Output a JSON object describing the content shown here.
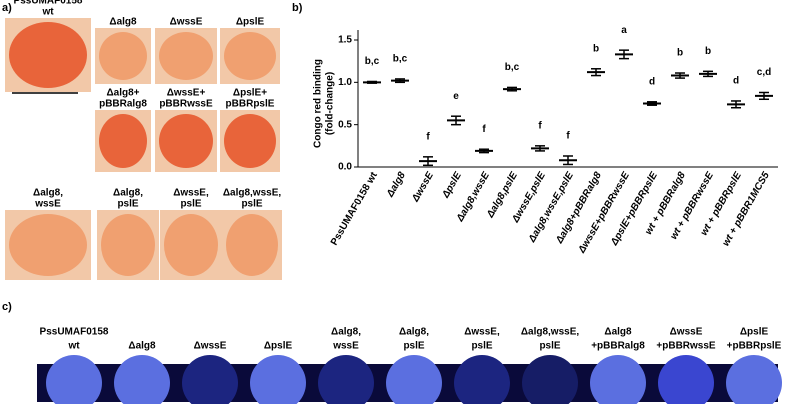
{
  "panel_a": {
    "label": "a)",
    "plates": [
      [
        "PssUMAF0158",
        "wt"
      ],
      [
        "Δalg8"
      ],
      [
        "ΔwssE"
      ],
      [
        "ΔpslE"
      ],
      [
        "Δalg8+",
        "pBBRalg8"
      ],
      [
        "ΔwssE+",
        "pBBRwssE"
      ],
      [
        "ΔpslE+",
        "pBBRpslE"
      ],
      [
        "Δalg8,",
        "wssE"
      ],
      [
        "Δalg8,",
        "pslE"
      ],
      [
        "ΔwssE,",
        "pslE"
      ],
      [
        "Δalg8,wssE,",
        "pslE"
      ]
    ]
  },
  "chart_data": {
    "type": "dot",
    "label": "b)",
    "ylabel": [
      "Congo red binding",
      "(fold-change)"
    ],
    "categories": [
      "PssUMAF0158 wt",
      "Δalg8",
      "ΔwssE",
      "ΔpslE",
      "Δalg8,wssE",
      "Δalg8,pslE",
      "ΔwssE,pslE",
      "Δalg8,wssE,pslE",
      "Δalg8+pBBRalg8",
      "ΔwssE+pBBRwssE",
      "ΔpslE+pBBRpslE",
      "wt + pBBRalg8",
      "wt + pBBRwssE",
      "wt + pBBRpslE",
      "wt + pBBR1MCS5"
    ],
    "values": [
      1.0,
      1.02,
      0.07,
      0.55,
      0.19,
      0.92,
      0.22,
      0.08,
      1.12,
      1.33,
      0.75,
      1.08,
      1.1,
      0.74,
      0.84
    ],
    "errors": [
      0.01,
      0.02,
      0.05,
      0.05,
      0.02,
      0.02,
      0.03,
      0.05,
      0.04,
      0.05,
      0.02,
      0.03,
      0.03,
      0.04,
      0.04
    ],
    "annotations": [
      "b,c",
      "b,c",
      "f",
      "e",
      "f",
      "b,c",
      "f",
      "f",
      "b",
      "a",
      "d",
      "b",
      "b",
      "d",
      "c,d"
    ],
    "ylim": [
      0,
      1.5
    ],
    "yticks": [
      {
        "value": 0,
        "label": "0.0"
      },
      0.5,
      {
        "value": 1,
        "label": "1.0"
      },
      1.5
    ],
    "color": "#000000"
  },
  "panel_c": {
    "label": "c)",
    "strains": [
      [
        "PssUMAF0158",
        "wt"
      ],
      [
        "Δalg8"
      ],
      [
        "ΔwssE"
      ],
      [
        "ΔpslE"
      ],
      [
        "Δalg8,",
        "wssE"
      ],
      [
        "Δalg8,",
        "pslE"
      ],
      [
        "ΔwssE,",
        "pslE"
      ],
      [
        "Δalg8,wssE,",
        "pslE"
      ],
      [
        "Δalg8",
        "+pBBRalg8"
      ],
      [
        "ΔwssE",
        "+pBBRwssE"
      ],
      [
        "ΔpslE",
        "+pBBRpslE"
      ]
    ]
  }
}
